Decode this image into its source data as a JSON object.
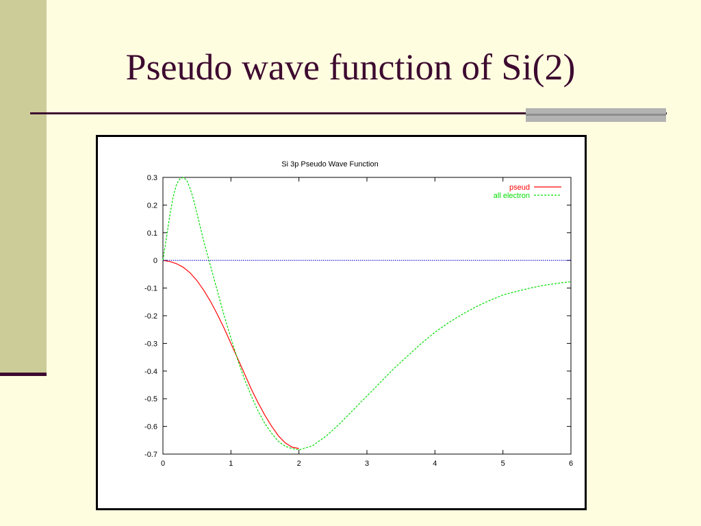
{
  "slide": {
    "title": "Pseudo wave function of Si(2)"
  },
  "chart_data": {
    "type": "line",
    "title": "Si 3p Pseudo Wave Function",
    "xlabel": "",
    "ylabel": "",
    "xlim": [
      0,
      6
    ],
    "ylim": [
      -0.7,
      0.3
    ],
    "xticks": [
      0,
      1,
      2,
      3,
      4,
      5,
      6
    ],
    "yticks": [
      0.3,
      0.2,
      0.1,
      0,
      -0.1,
      -0.2,
      -0.3,
      -0.4,
      -0.5,
      -0.6,
      -0.7
    ],
    "legend_position": "top-right",
    "series": [
      {
        "name": "pseud",
        "color": "#ff0000",
        "style": "solid",
        "x": [
          0,
          0.1,
          0.2,
          0.3,
          0.4,
          0.5,
          0.6,
          0.7,
          0.8,
          0.9,
          1.0,
          1.1,
          1.2,
          1.3,
          1.4,
          1.5,
          1.6,
          1.7,
          1.8,
          1.9,
          2.0
        ],
        "y": [
          0,
          -0.004,
          -0.012,
          -0.025,
          -0.045,
          -0.073,
          -0.108,
          -0.148,
          -0.195,
          -0.245,
          -0.3,
          -0.355,
          -0.41,
          -0.465,
          -0.515,
          -0.56,
          -0.6,
          -0.635,
          -0.66,
          -0.675,
          -0.68
        ]
      },
      {
        "name": "all electron",
        "color": "#00dd00",
        "style": "dashed",
        "x": [
          0,
          0.05,
          0.1,
          0.15,
          0.2,
          0.25,
          0.3,
          0.35,
          0.4,
          0.45,
          0.5,
          0.6,
          0.7,
          0.8,
          0.9,
          1.0,
          1.1,
          1.2,
          1.3,
          1.4,
          1.5,
          1.6,
          1.7,
          1.8,
          1.9,
          2.0,
          2.2,
          2.4,
          2.6,
          2.8,
          3.0,
          3.2,
          3.4,
          3.6,
          3.8,
          4.0,
          4.2,
          4.4,
          4.6,
          4.8,
          5.0,
          5.2,
          5.4,
          5.6,
          5.8,
          6.0
        ],
        "y": [
          0,
          0.08,
          0.16,
          0.23,
          0.275,
          0.295,
          0.3,
          0.29,
          0.26,
          0.22,
          0.17,
          0.07,
          -0.02,
          -0.11,
          -0.2,
          -0.28,
          -0.36,
          -0.43,
          -0.49,
          -0.545,
          -0.59,
          -0.625,
          -0.655,
          -0.672,
          -0.68,
          -0.685,
          -0.67,
          -0.635,
          -0.59,
          -0.54,
          -0.49,
          -0.44,
          -0.39,
          -0.345,
          -0.3,
          -0.26,
          -0.225,
          -0.195,
          -0.168,
          -0.145,
          -0.125,
          -0.112,
          -0.1,
          -0.09,
          -0.083,
          -0.077
        ]
      },
      {
        "name": "",
        "color": "#0000cc",
        "style": "dotted",
        "x": [
          0,
          6
        ],
        "y": [
          0,
          0
        ]
      }
    ]
  }
}
